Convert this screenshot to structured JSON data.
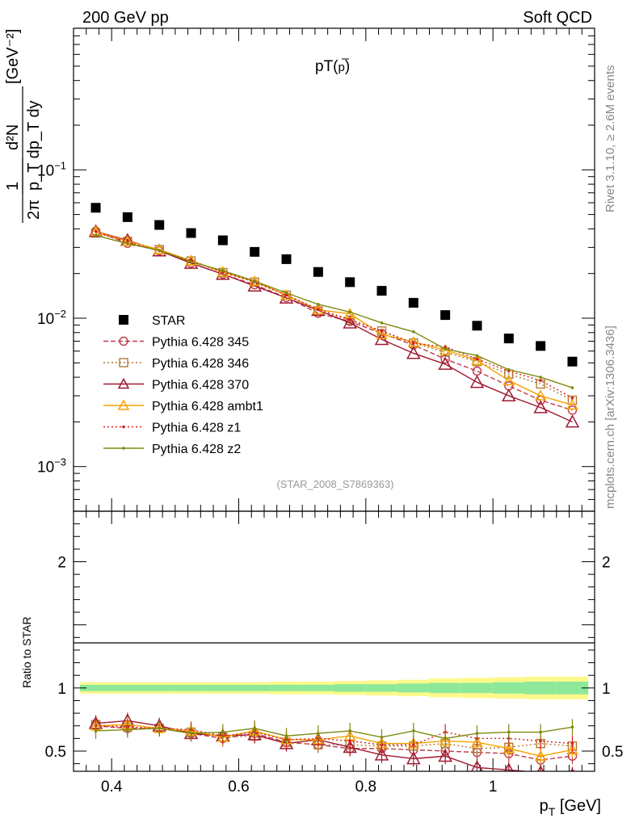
{
  "header": {
    "left": "200 GeV pp",
    "right": "Soft QCD"
  },
  "side_labels": {
    "rivet": "Rivet 3.1.10, ≥ 2.6M events",
    "mcplots": "mcplots.cern.ch [arXiv:1306.3436]"
  },
  "chart_data": [
    {
      "type": "scatter",
      "panel": "main",
      "title": "pT(p̄)",
      "title_main": "pT(",
      "title_bar": "p",
      "title_close": ")",
      "ylabel_frac_num": "1",
      "ylabel_frac_den": "2π",
      "ylabel_num": "d²N",
      "ylabel_den": "p_T dp_T dy",
      "ylabel_unit": "[GeV⁻²]",
      "yscale": "log",
      "ylim": [
        0.0005,
        0.9
      ],
      "xlim": [
        0.34,
        1.16
      ],
      "yticks": [
        {
          "v": 0.1,
          "base": "10",
          "exp": "−1"
        },
        {
          "v": 0.01,
          "base": "10",
          "exp": "−2"
        },
        {
          "v": 0.001,
          "base": "10",
          "exp": "−3"
        }
      ],
      "annotation": "(STAR_2008_S7869363)",
      "legend_position": "lower-left",
      "x": [
        0.375,
        0.425,
        0.475,
        0.525,
        0.575,
        0.625,
        0.675,
        0.725,
        0.775,
        0.825,
        0.875,
        0.925,
        0.975,
        1.025,
        1.075,
        1.125
      ],
      "series": [
        {
          "name": "STAR",
          "color": "#000000",
          "marker": "square",
          "line": "none",
          "values": [
            0.0555,
            0.048,
            0.0425,
            0.0375,
            0.0335,
            0.028,
            0.025,
            0.0205,
            0.0175,
            0.0153,
            0.0127,
            0.0105,
            0.0089,
            0.0073,
            0.0065,
            0.0051
          ]
        },
        {
          "name": "Pythia 6.428 345",
          "color": "#c0394b",
          "marker": "circle",
          "line": "dashed",
          "values": [
            0.0385,
            0.032,
            0.0285,
            0.0235,
            0.0198,
            0.0168,
            0.0138,
            0.0108,
            0.0095,
            0.0079,
            0.0066,
            0.0053,
            0.0044,
            0.0035,
            0.0028,
            0.0024
          ]
        },
        {
          "name": "Pythia 6.428 346",
          "color": "#b07a36",
          "marker": "square-open",
          "line": "dotted",
          "values": [
            0.0375,
            0.033,
            0.029,
            0.0243,
            0.0203,
            0.0175,
            0.0143,
            0.0112,
            0.0097,
            0.0082,
            0.0068,
            0.0059,
            0.0051,
            0.0042,
            0.0036,
            0.0028
          ]
        },
        {
          "name": "Pythia 6.428 370",
          "color": "#a01830",
          "marker": "triangle",
          "line": "solid",
          "values": [
            0.0385,
            0.0335,
            0.0285,
            0.0235,
            0.0198,
            0.0165,
            0.0137,
            0.0113,
            0.0093,
            0.0072,
            0.0058,
            0.0049,
            0.0037,
            0.003,
            0.0025,
            0.002
          ]
        },
        {
          "name": "Pythia 6.428 ambt1",
          "color": "#f5a300",
          "marker": "triangle",
          "line": "solid",
          "values": [
            0.0385,
            0.033,
            0.029,
            0.0244,
            0.0205,
            0.0177,
            0.0143,
            0.0114,
            0.0107,
            0.0078,
            0.0069,
            0.0061,
            0.0052,
            0.0038,
            0.003,
            0.0026
          ]
        },
        {
          "name": "Pythia 6.428 z1",
          "color": "#d81e1e",
          "marker": "dot",
          "line": "dotted",
          "values": [
            0.0385,
            0.0325,
            0.0285,
            0.0244,
            0.0205,
            0.0176,
            0.0143,
            0.0115,
            0.0098,
            0.0082,
            0.0068,
            0.0064,
            0.0053,
            0.0044,
            0.0038,
            0.0029
          ]
        },
        {
          "name": "Pythia 6.428 z2",
          "color": "#7f8a10",
          "marker": "dot",
          "line": "solid",
          "values": [
            0.0362,
            0.0318,
            0.0287,
            0.024,
            0.0209,
            0.0178,
            0.0148,
            0.0124,
            0.011,
            0.0093,
            0.0081,
            0.0062,
            0.0056,
            0.0045,
            0.004,
            0.0034
          ]
        }
      ]
    },
    {
      "type": "scatter",
      "panel": "ratio",
      "ylabel": "Ratio to STAR",
      "xlabel_main": "p",
      "xlabel_sub": "T",
      "xlabel_unit": " [GeV]",
      "yscale": "linear",
      "ylim": [
        0.34,
        2.4
      ],
      "xlim": [
        0.34,
        1.16
      ],
      "yticks": [
        0.5,
        1,
        2
      ],
      "xticks": [
        0.4,
        0.6,
        0.8,
        1
      ],
      "band_inner_halfwidth": [
        0.025,
        0.025,
        0.025,
        0.025,
        0.025,
        0.025,
        0.025,
        0.025,
        0.03,
        0.03,
        0.035,
        0.04,
        0.04,
        0.045,
        0.05,
        0.05
      ],
      "band_outer_halfwidth": [
        0.045,
        0.045,
        0.045,
        0.045,
        0.045,
        0.045,
        0.05,
        0.05,
        0.055,
        0.06,
        0.065,
        0.075,
        0.08,
        0.085,
        0.09,
        0.09
      ],
      "series": [
        {
          "name": "Pythia 6.428 345",
          "values": [
            0.7,
            0.68,
            0.68,
            0.64,
            0.6,
            0.64,
            0.57,
            0.55,
            0.52,
            0.52,
            0.51,
            0.5,
            0.49,
            0.48,
            0.43,
            0.46
          ]
        },
        {
          "name": "Pythia 6.428 346",
          "values": [
            0.71,
            0.69,
            0.68,
            0.65,
            0.61,
            0.62,
            0.57,
            0.55,
            0.55,
            0.54,
            0.54,
            0.56,
            0.52,
            0.53,
            0.56,
            0.54
          ]
        },
        {
          "name": "Pythia 6.428 370",
          "values": [
            0.72,
            0.74,
            0.7,
            0.64,
            0.62,
            0.63,
            0.56,
            0.59,
            0.53,
            0.47,
            0.44,
            0.46,
            0.37,
            0.35,
            0.33,
            0.31
          ]
        },
        {
          "name": "Pythia 6.428 ambt1",
          "values": [
            0.7,
            0.71,
            0.68,
            0.66,
            0.61,
            0.66,
            0.59,
            0.59,
            0.62,
            0.56,
            0.56,
            0.58,
            0.57,
            0.52,
            0.46,
            0.51
          ]
        },
        {
          "name": "Pythia 6.428 z1",
          "values": [
            0.7,
            0.69,
            0.68,
            0.67,
            0.62,
            0.65,
            0.59,
            0.6,
            0.58,
            0.55,
            0.55,
            0.65,
            0.6,
            0.6,
            0.58,
            0.56
          ]
        },
        {
          "name": "Pythia 6.428 z2",
          "values": [
            0.66,
            0.67,
            0.68,
            0.64,
            0.65,
            0.68,
            0.62,
            0.64,
            0.66,
            0.61,
            0.66,
            0.6,
            0.64,
            0.65,
            0.65,
            0.69
          ]
        }
      ]
    }
  ]
}
